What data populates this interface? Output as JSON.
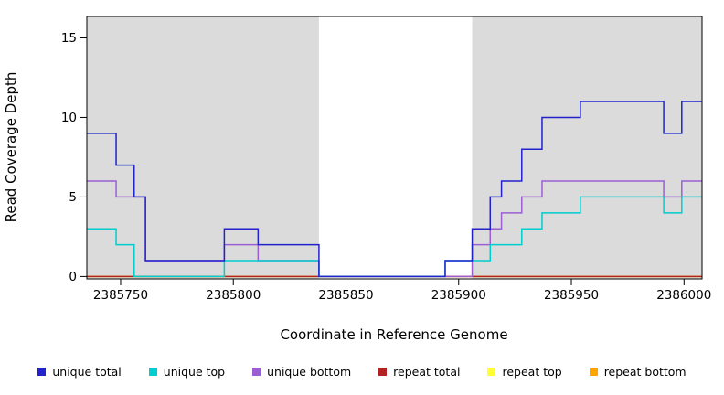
{
  "chart_data": {
    "type": "line",
    "step": true,
    "title": "",
    "xlabel": "Coordinate in Reference Genome",
    "ylabel": "Read Coverage Depth",
    "xlim": [
      2385735,
      2386008
    ],
    "ylim": [
      -0.15,
      16.35
    ],
    "x_ticks": [
      2385750,
      2385800,
      2385850,
      2385900,
      2385950,
      2386000
    ],
    "y_ticks": [
      0,
      5,
      10,
      15
    ],
    "grid": false,
    "legend_position": "bottom",
    "plot_background": "#ffffff",
    "background_regions": [
      {
        "x0": 2385735,
        "x1": 2385838,
        "color": "#dbdbdb"
      },
      {
        "x0": 2385906,
        "x1": 2386008,
        "color": "#dbdbdb"
      }
    ],
    "series": [
      {
        "name": "unique total",
        "color": "#2222cc",
        "x": [
          2385735,
          2385748,
          2385756,
          2385761,
          2385796,
          2385811,
          2385838,
          2385894,
          2385906,
          2385914,
          2385919,
          2385928,
          2385937,
          2385954,
          2385991,
          2385999
        ],
        "y": [
          9,
          7,
          5,
          1,
          3,
          2,
          0,
          1,
          3,
          5,
          6,
          8,
          10,
          11,
          9,
          11
        ]
      },
      {
        "name": "unique top",
        "color": "#00cdcd",
        "x": [
          2385735,
          2385748,
          2385756,
          2385796,
          2385838,
          2385894,
          2385914,
          2385928,
          2385937,
          2385954,
          2385991,
          2385999
        ],
        "y": [
          3,
          2,
          0,
          1,
          0,
          1,
          2,
          3,
          4,
          5,
          4,
          5
        ]
      },
      {
        "name": "unique bottom",
        "color": "#9b5fd4",
        "x": [
          2385735,
          2385748,
          2385761,
          2385796,
          2385811,
          2385838,
          2385906,
          2385914,
          2385919,
          2385928,
          2385937,
          2385991,
          2385999
        ],
        "y": [
          6,
          5,
          1,
          2,
          1,
          0,
          2,
          3,
          4,
          5,
          6,
          5,
          6
        ]
      },
      {
        "name": "repeat total",
        "color": "#b22222",
        "x": [
          2385735
        ],
        "y": [
          0
        ]
      },
      {
        "name": "repeat top",
        "color": "#ffff33",
        "x": [
          2385735
        ],
        "y": [
          0
        ]
      },
      {
        "name": "repeat bottom",
        "color": "#ffa500",
        "x": [
          2385735
        ],
        "y": [
          0
        ]
      }
    ]
  }
}
